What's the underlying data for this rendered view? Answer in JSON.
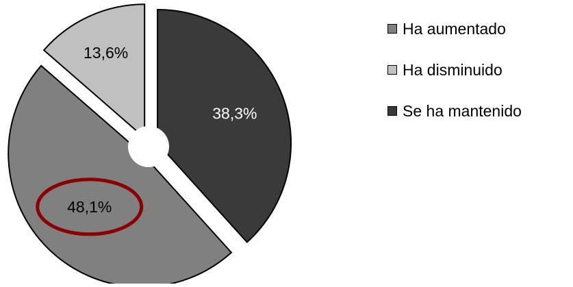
{
  "chart_data": {
    "type": "pie",
    "title": "",
    "slices": [
      {
        "label": "Ha aumentado",
        "value": 48.1,
        "value_label": "48,1%",
        "color": "#808080"
      },
      {
        "label": "Ha disminuido",
        "value": 13.6,
        "value_label": "13,6%",
        "color": "#c0c0c0"
      },
      {
        "label": "Se ha mantenido",
        "value": 38.3,
        "value_label": "38,3%",
        "color": "#3a3a3a"
      }
    ],
    "legend_position": "right",
    "exploded": true,
    "highlight": {
      "slice": "Ha aumentado",
      "color": "#8b0000",
      "shape": "ellipse"
    }
  }
}
